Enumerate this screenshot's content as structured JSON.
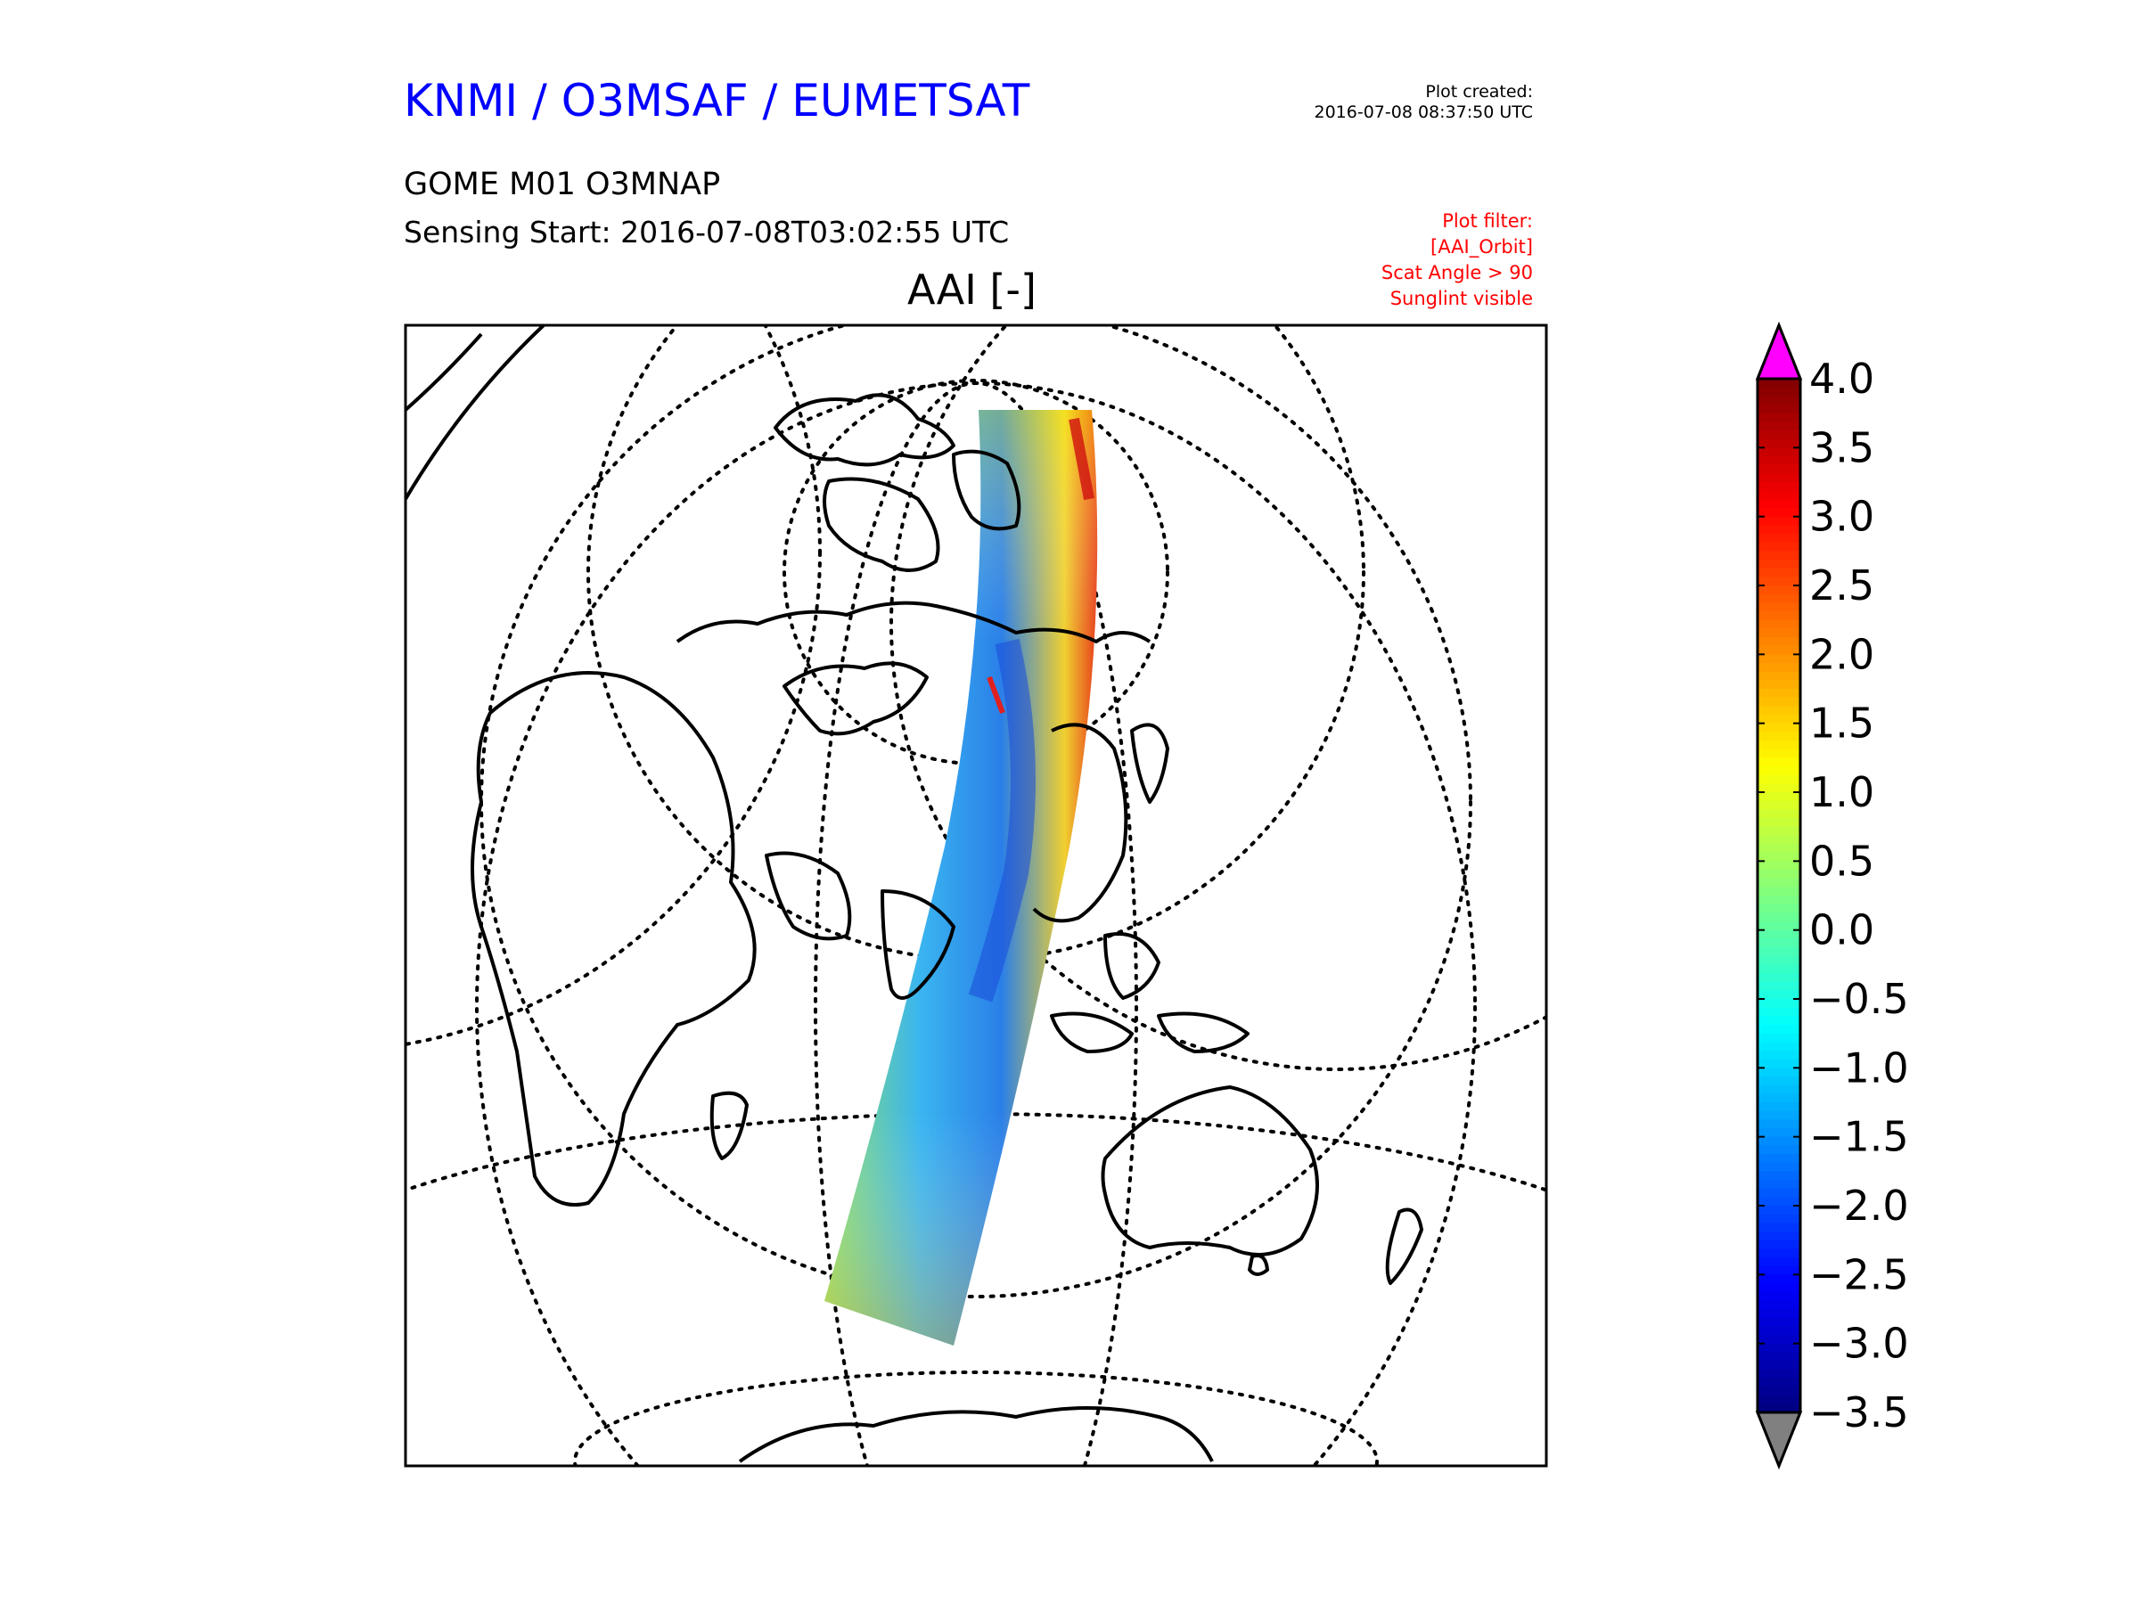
{
  "header": {
    "organization": "KNMI / O3MSAF / EUMETSAT",
    "plot_created_label": "Plot created:",
    "plot_created_value": "2016-07-08 08:37:50 UTC",
    "product": "GOME M01 O3MNAP",
    "sensing_start": "Sensing Start: 2016-07-08T03:02:55 UTC"
  },
  "filters": [
    "Plot filter:",
    "[AAI_Orbit]",
    "Scat Angle > 90",
    "Sunglint visible"
  ],
  "map": {
    "title": "AAI [-]"
  },
  "colorbar": {
    "ticks": [
      "4.0",
      "3.5",
      "3.0",
      "2.5",
      "2.0",
      "1.5",
      "1.0",
      "0.5",
      "0.0",
      "−0.5",
      "−1.0",
      "−1.5",
      "−2.0",
      "−2.5",
      "−3.0",
      "−3.5"
    ],
    "min": -3.5,
    "max": 4.0,
    "colormap": "jet",
    "over_color": "#ff00ff",
    "under_color": "#808080"
  },
  "colors": {
    "organization": "#0000ff",
    "filter_text": "#ff0000",
    "coastline": "#000000"
  }
}
